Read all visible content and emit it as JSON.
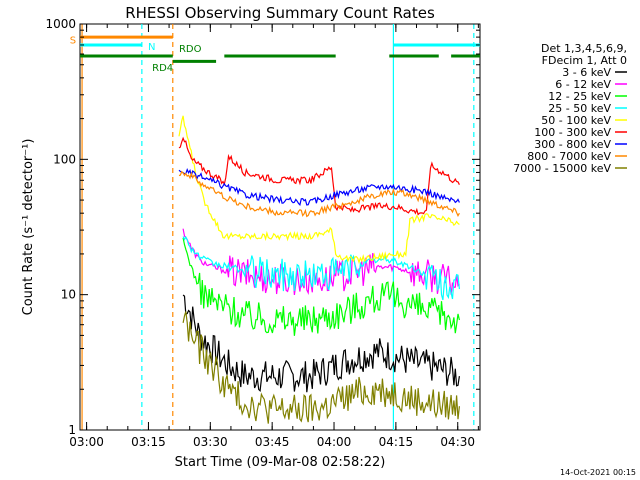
{
  "chart_data": {
    "type": "line",
    "title": "RHESSI Observing Summary Count Rates",
    "xlabel": "Start Time (09-Mar-08 02:58:22)",
    "ylabel": "Count Rate (s⁻¹ detector⁻¹)",
    "yscale": "log",
    "ylim": [
      1,
      1000
    ],
    "xlim_minutes": [
      0,
      97
    ],
    "x_ticks": [
      {
        "label": "03:00",
        "minute": 1.6
      },
      {
        "label": "03:15",
        "minute": 16.6
      },
      {
        "label": "03:30",
        "minute": 31.6
      },
      {
        "label": "03:45",
        "minute": 46.6
      },
      {
        "label": "04:00",
        "minute": 61.6
      },
      {
        "label": "04:15",
        "minute": 76.6
      },
      {
        "label": "04:30",
        "minute": 91.6
      }
    ],
    "y_ticks": [
      {
        "label": "1",
        "value": 1
      },
      {
        "label": "10",
        "value": 10
      },
      {
        "label": "100",
        "value": 100
      },
      {
        "label": "1000",
        "value": 1000
      }
    ],
    "legend": {
      "position": "top-right",
      "header": [
        "Det 1,3,4,5,6,9,",
        "FDecim 1, Att 0"
      ]
    },
    "series": [
      {
        "name": "3 - 6 keV",
        "color": "#000000",
        "x": [
          25,
          27,
          29,
          32,
          36,
          40,
          48,
          56,
          60,
          64,
          68,
          72,
          76,
          80,
          84,
          88,
          92
        ],
        "y": [
          10,
          7,
          5,
          4,
          3,
          2.5,
          2.5,
          2.5,
          2.8,
          3.2,
          3.5,
          3.8,
          3.5,
          3.2,
          3.0,
          2.8,
          2.5
        ]
      },
      {
        "name": "6 - 12 keV",
        "color": "#ff00ff",
        "x": [
          25,
          27,
          29,
          32,
          36,
          40,
          48,
          56,
          60,
          64,
          68,
          72,
          76,
          80,
          84,
          88,
          92
        ],
        "y": [
          30,
          22,
          18,
          16,
          15,
          14,
          13,
          13,
          13,
          14,
          15,
          16,
          16,
          15,
          14,
          13,
          12
        ]
      },
      {
        "name": "12 - 25 keV",
        "color": "#00ff00",
        "x": [
          25,
          27,
          29,
          32,
          36,
          40,
          48,
          56,
          60,
          64,
          68,
          72,
          76,
          80,
          84,
          88,
          92
        ],
        "y": [
          25,
          16,
          11,
          9,
          8,
          7,
          6.5,
          6.5,
          7,
          7.5,
          8.5,
          9.5,
          9.5,
          8.5,
          7.5,
          7,
          6.5
        ]
      },
      {
        "name": "25 - 50 keV",
        "color": "#00ffff",
        "x": [
          25,
          27,
          29,
          32,
          36,
          40,
          48,
          56,
          60,
          64,
          68,
          72,
          76,
          80,
          84,
          88,
          92
        ],
        "y": [
          28,
          22,
          19,
          17,
          16,
          15,
          14,
          14,
          14,
          15,
          17,
          18,
          18,
          16,
          14,
          12,
          11
        ]
      },
      {
        "name": "50 - 100 keV",
        "color": "#ffff00",
        "x": [
          24,
          25,
          26,
          28,
          30,
          34,
          35,
          40,
          48,
          56,
          61,
          62,
          66,
          72,
          76,
          79,
          80,
          84,
          88,
          92
        ],
        "y": [
          150,
          200,
          150,
          80,
          50,
          30,
          27,
          27,
          27,
          27,
          30,
          20,
          18,
          19,
          20,
          20,
          35,
          38,
          36,
          33
        ]
      },
      {
        "name": "100 - 300 keV",
        "color": "#ff0000",
        "x": [
          24,
          25,
          26,
          27,
          30,
          34,
          35,
          36,
          40,
          48,
          56,
          61,
          62,
          66,
          72,
          76,
          80,
          84,
          85,
          88,
          92
        ],
        "y": [
          120,
          150,
          120,
          100,
          85,
          70,
          65,
          105,
          80,
          70,
          70,
          88,
          45,
          42,
          45,
          45,
          42,
          40,
          90,
          80,
          65
        ]
      },
      {
        "name": "300 - 800 keV",
        "color": "#0000ff",
        "x": [
          24,
          25,
          27,
          30,
          34,
          40,
          48,
          56,
          62,
          68,
          72,
          76,
          80,
          84,
          88,
          92
        ],
        "y": [
          80,
          82,
          78,
          73,
          65,
          55,
          50,
          48,
          55,
          60,
          63,
          63,
          60,
          58,
          52,
          48
        ]
      },
      {
        "name": "800 - 7000 keV",
        "color": "#ff8800",
        "x": [
          24,
          25,
          27,
          30,
          34,
          40,
          48,
          56,
          62,
          68,
          72,
          76,
          80,
          84,
          88,
          92
        ],
        "y": [
          80,
          80,
          75,
          65,
          55,
          45,
          40,
          40,
          45,
          50,
          55,
          57,
          55,
          50,
          45,
          40
        ]
      },
      {
        "name": "7000 - 15000 keV",
        "color": "#808000",
        "x": [
          25,
          27,
          29,
          32,
          36,
          40,
          48,
          56,
          60,
          64,
          68,
          72,
          76,
          80,
          84,
          88,
          92
        ],
        "y": [
          7,
          5,
          4,
          3,
          2,
          1.6,
          1.4,
          1.4,
          1.5,
          1.7,
          1.9,
          2.0,
          1.9,
          1.7,
          1.6,
          1.5,
          1.5
        ]
      }
    ],
    "status_bars": [
      {
        "color": "#ff8800",
        "y": 800,
        "segments": [
          [
            0,
            22.5
          ]
        ]
      },
      {
        "color": "#00ffff",
        "y": 700,
        "segments": [
          [
            0,
            15
          ],
          [
            76,
            97
          ]
        ]
      },
      {
        "color": "#008000",
        "y": 580,
        "segments": [
          [
            0,
            22.5
          ],
          [
            35,
            62
          ],
          [
            75,
            87
          ],
          [
            90,
            97
          ]
        ]
      },
      {
        "color": "#008000",
        "y": 530,
        "segments": [
          [
            22.5,
            33
          ]
        ]
      }
    ],
    "vertical_lines": [
      {
        "minute": 0.5,
        "color": "#ff8800",
        "style": "solid"
      },
      {
        "minute": 15,
        "color": "#00ffff",
        "style": "dashed"
      },
      {
        "minute": 22.5,
        "color": "#ff8800",
        "style": "dashed"
      },
      {
        "minute": 76,
        "color": "#00ffff",
        "style": "solid"
      },
      {
        "minute": 95.5,
        "color": "#00ffff",
        "style": "dashed"
      }
    ],
    "annotations": [
      {
        "text": "S",
        "color": "#ff8800",
        "minute": -2.5,
        "y": 720
      },
      {
        "text": "N",
        "color": "#00ffff",
        "minute": 16.5,
        "y": 640
      },
      {
        "text": "RD4",
        "color": "#008000",
        "minute": 17.5,
        "y": 450
      },
      {
        "text": "RDO",
        "color": "#008000",
        "minute": 24,
        "y": 620
      }
    ],
    "footer_date": "14-Oct-2021 00:15"
  }
}
